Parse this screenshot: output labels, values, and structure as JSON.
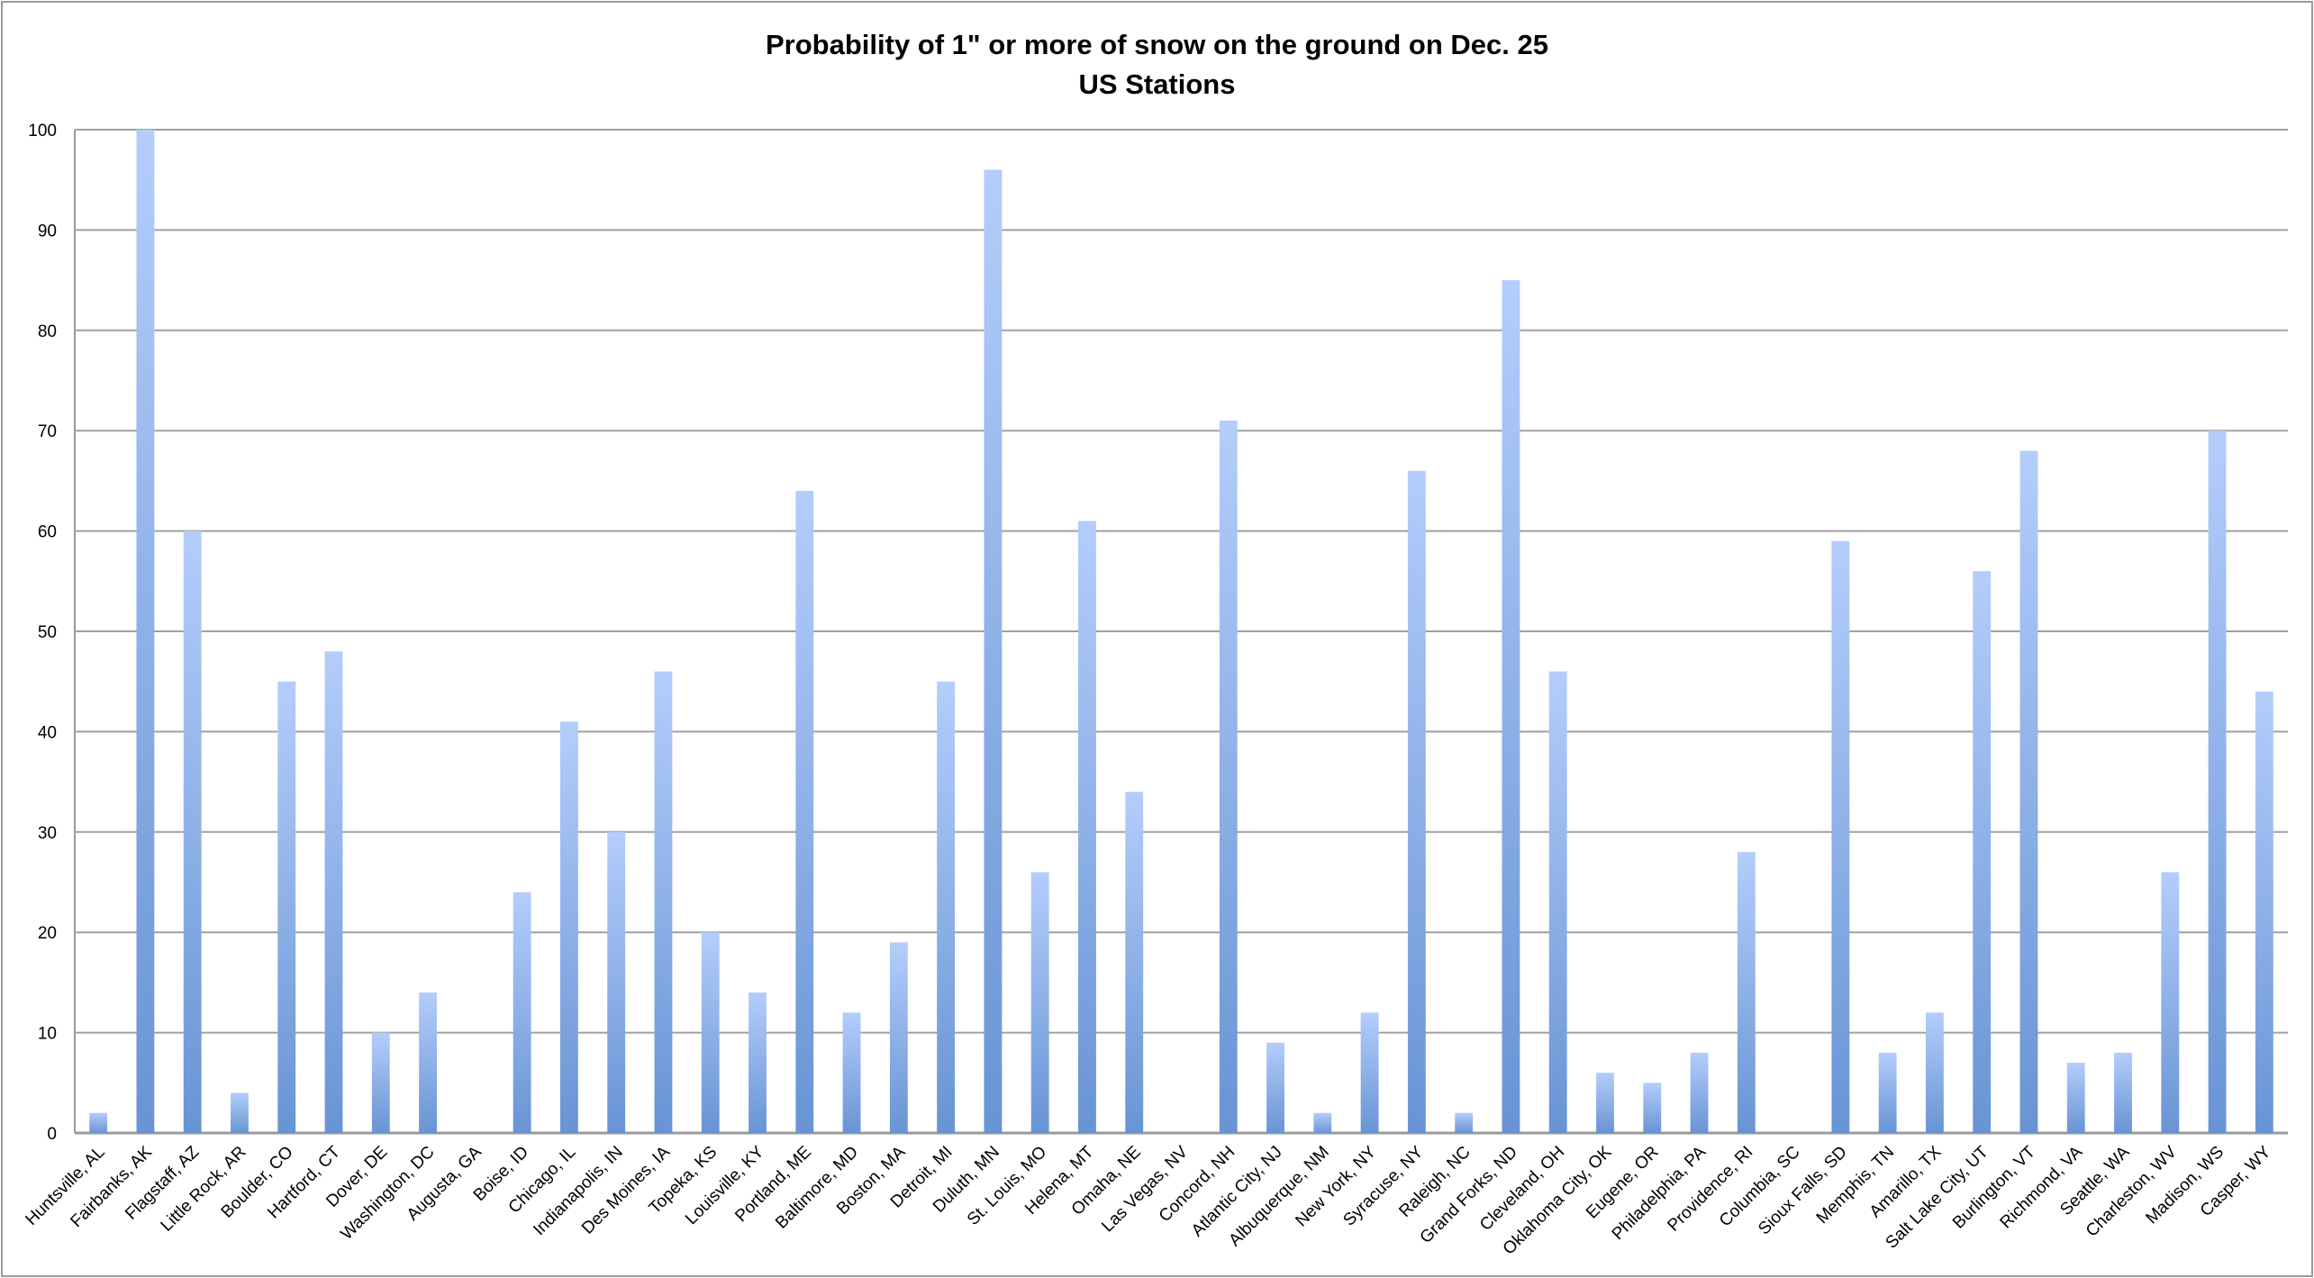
{
  "chart_data": {
    "type": "bar",
    "title": "Probability of 1\" or more of snow on the ground on Dec. 25",
    "subtitle": "US Stations",
    "xlabel": "",
    "ylabel": "",
    "ylim": [
      0,
      100
    ],
    "yticks": [
      0,
      10,
      20,
      30,
      40,
      50,
      60,
      70,
      80,
      90,
      100
    ],
    "grid": true,
    "legend": "none",
    "bar_color_top": "#b4cdfb",
    "bar_color_bottom": "#6894d4",
    "categories": [
      "Huntsville, AL",
      "Fairbanks, AK",
      "Flagstaff, AZ",
      "Little Rock, AR",
      "Boulder, CO",
      "Hartford, CT",
      "Dover, DE",
      "Washington, DC",
      "Augusta, GA",
      "Boise, ID",
      "Chicago, IL",
      "Indianapolis, IN",
      "Des Moines, IA",
      "Topeka, KS",
      "Louisville, KY",
      "Portland, ME",
      "Baltimore, MD",
      "Boston, MA",
      "Detroit, MI",
      "Duluth, MN",
      "St. Louis, MO",
      "Helena, MT",
      "Omaha, NE",
      "Las Vegas, NV",
      "Concord, NH",
      "Atlantic City, NJ",
      "Albuquerque, NM",
      "New York, NY",
      "Syracuse, NY",
      "Raleigh, NC",
      "Grand Forks, ND",
      "Cleveland, OH",
      "Oklahoma City, OK",
      "Eugene, OR",
      "Philadelphia, PA",
      "Providence, RI",
      "Columbia, SC",
      "Sioux Falls, SD",
      "Memphis, TN",
      "Amarillo, TX",
      "Salt Lake City, UT",
      "Burlington, VT",
      "Richmond, VA",
      "Seattle, WA",
      "Charleston, WV",
      "Madison, WS",
      "Casper, WY"
    ],
    "values": [
      2,
      100,
      60,
      4,
      45,
      48,
      10,
      14,
      0,
      24,
      41,
      30,
      46,
      20,
      14,
      64,
      12,
      19,
      45,
      96,
      26,
      61,
      34,
      0,
      71,
      9,
      2,
      12,
      66,
      2,
      85,
      46,
      6,
      5,
      8,
      28,
      0,
      59,
      8,
      12,
      56,
      68,
      7,
      8,
      26,
      70,
      44
    ]
  }
}
